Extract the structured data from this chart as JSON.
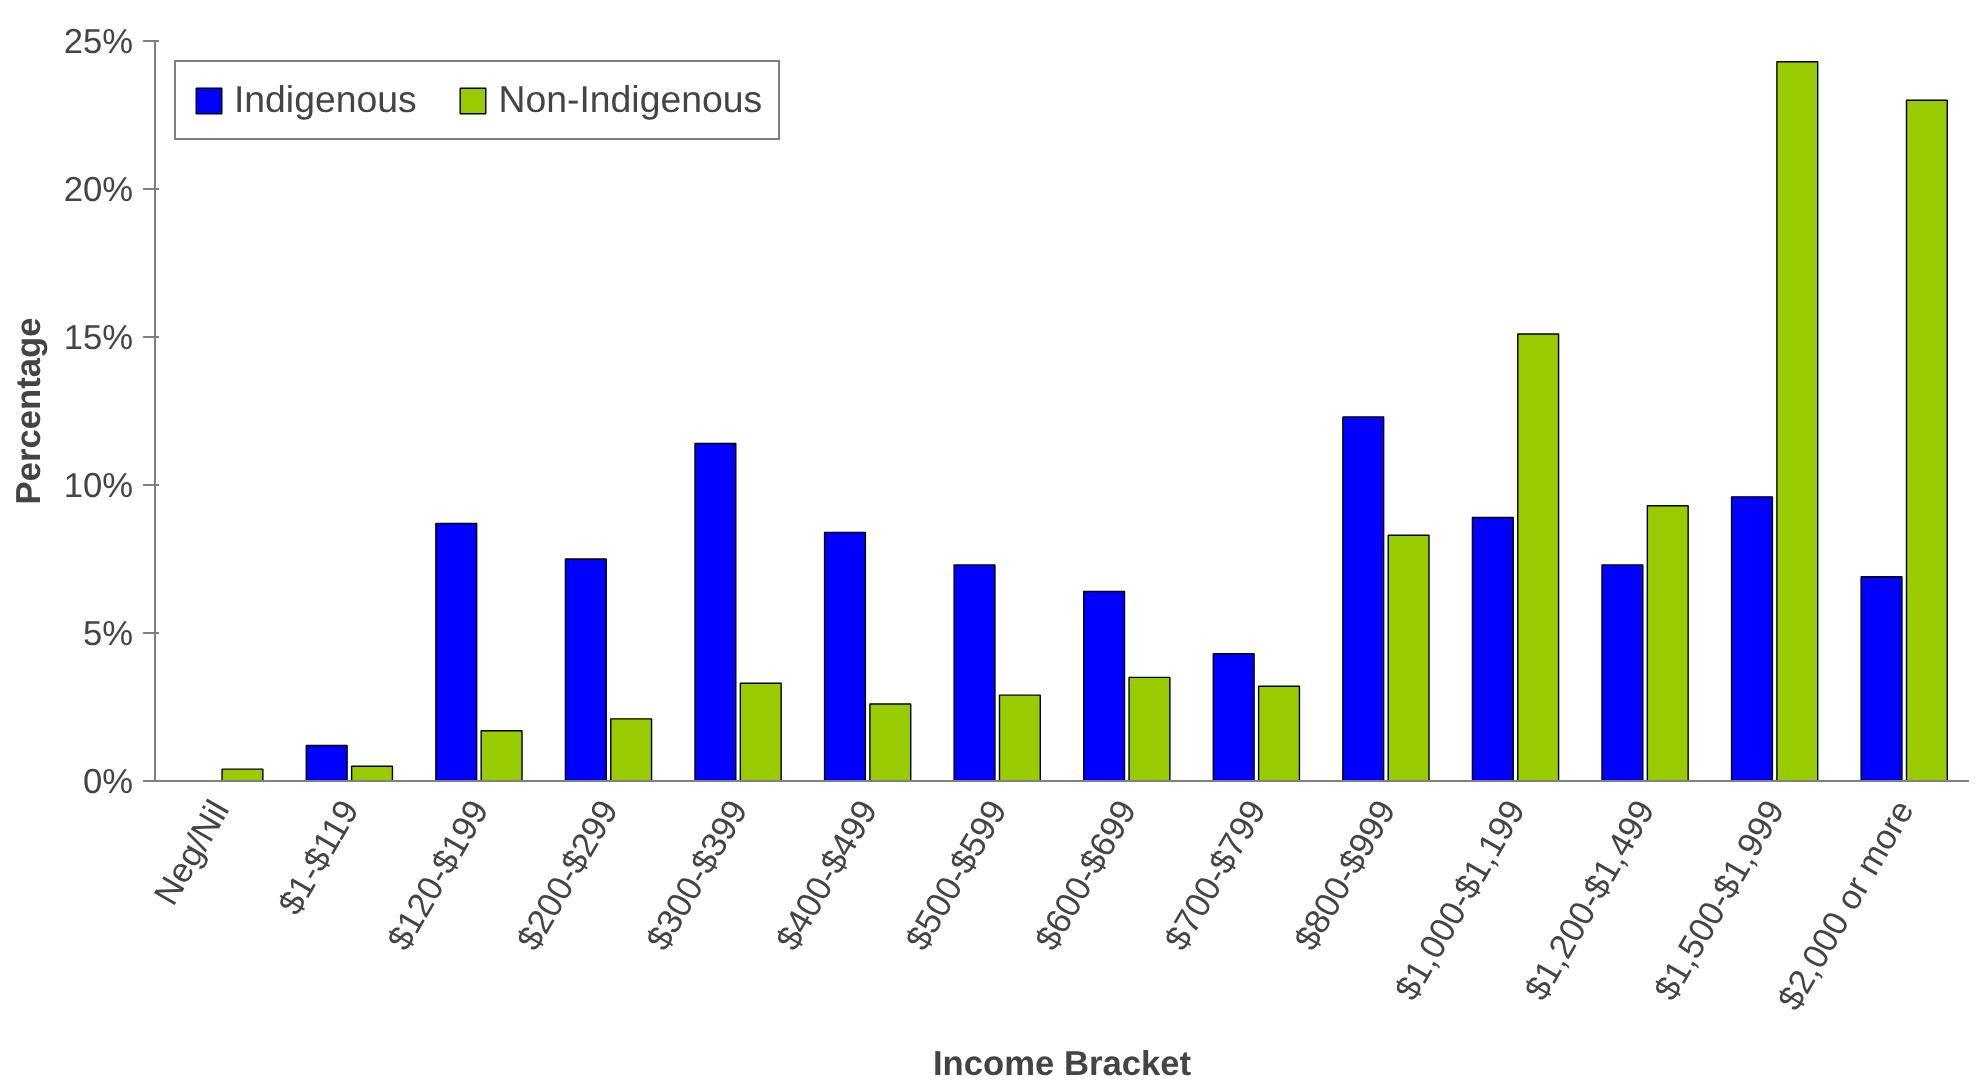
{
  "chart_data": {
    "type": "bar",
    "xlabel": "Income Bracket",
    "ylabel": "Percentage",
    "categories": [
      "Neg/Nil",
      "$1-$119",
      "$120-$199",
      "$200-$299",
      "$300-$399",
      "$400-$499",
      "$500-$599",
      "$600-$699",
      "$700-$799",
      "$800-$999",
      "$1,000-$1,199",
      "$1,200-$1,499",
      "$1,500-$1,999",
      "$2,000 or more"
    ],
    "series": [
      {
        "name": "Indigenous",
        "color": "#0000ff",
        "values": [
          null,
          1.2,
          8.7,
          7.5,
          11.4,
          8.4,
          7.3,
          6.4,
          4.3,
          12.3,
          8.9,
          7.3,
          9.6,
          6.9
        ]
      },
      {
        "name": "Non-Indigenous",
        "color": "#99cc00",
        "values": [
          0.4,
          0.5,
          1.7,
          2.1,
          3.3,
          2.6,
          2.9,
          3.5,
          3.2,
          8.3,
          15.1,
          9.3,
          24.3,
          23.0
        ]
      }
    ],
    "ylim": [
      0,
      25
    ],
    "yticks": [
      {
        "value": 0,
        "label": "0%"
      },
      {
        "value": 5,
        "label": "5%"
      },
      {
        "value": 10,
        "label": "10%"
      },
      {
        "value": 15,
        "label": "15%"
      },
      {
        "value": 20,
        "label": "20%"
      },
      {
        "value": 25,
        "label": "25%"
      }
    ],
    "grid": false,
    "legend": "top left"
  }
}
